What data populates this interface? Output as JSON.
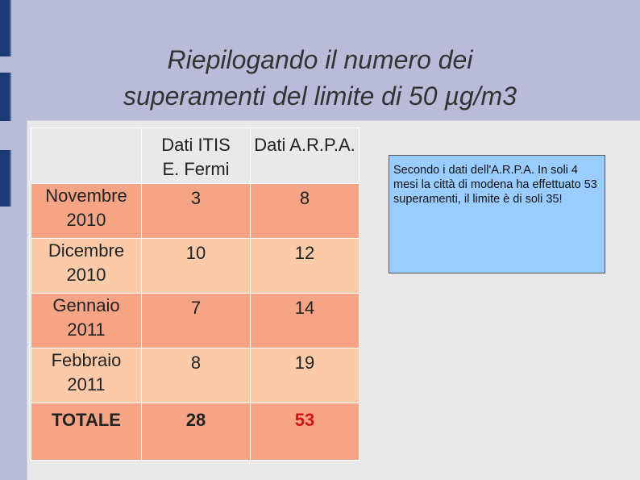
{
  "title": {
    "lines": [
      "Riepilogando il numero dei",
      "superamenti del limite di 50 µg/m3"
    ]
  },
  "table": {
    "columns": [
      "Dati ITIS E. Fermi",
      "Dati A.R.P.A."
    ],
    "rows": [
      [
        "Novembre 2010",
        3,
        8
      ],
      [
        "Dicembre 2010",
        10,
        12
      ],
      [
        "Gennaio 2011",
        7,
        14
      ],
      [
        "Febbraio 2011",
        8,
        19
      ]
    ],
    "total": [
      "TOTALE",
      28,
      53
    ]
  },
  "note": "Secondo i dati dell'A.R.P.A. In soli 4 mesi la città di modena ha effettuato 53 superamenti, il limite è di soli 35!"
}
